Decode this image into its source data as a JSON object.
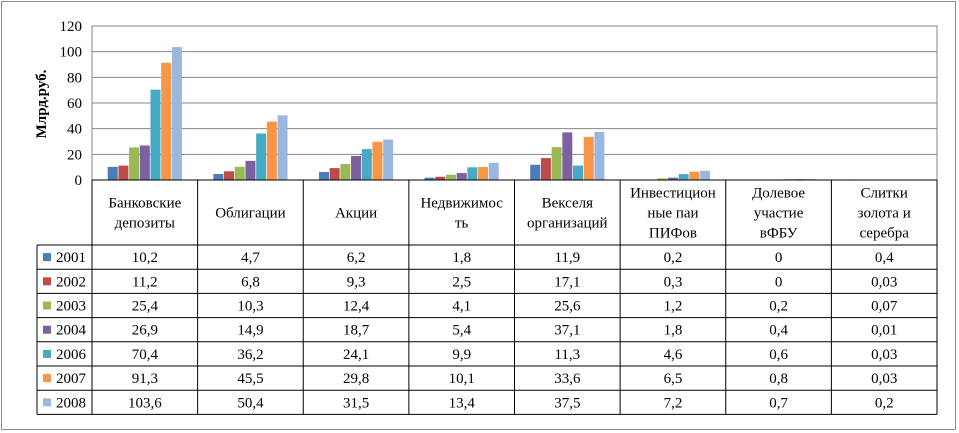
{
  "chart_data": {
    "type": "bar",
    "ylabel": "Млрд.руб.",
    "ylim": [
      0,
      120
    ],
    "yticks": [
      0,
      20,
      40,
      60,
      80,
      100,
      120
    ],
    "grid": true,
    "categories": [
      [
        "Банковские",
        "депозиты"
      ],
      [
        "Облигации"
      ],
      [
        "Акции"
      ],
      [
        "Недвижимос",
        "ть"
      ],
      [
        "Векселя",
        "организаций"
      ],
      [
        "Инвестицион",
        "ные паи",
        "ПИФов"
      ],
      [
        "Долевое",
        "участие",
        "вФБУ"
      ],
      [
        "Слитки",
        "золота и",
        "серебра"
      ]
    ],
    "series": [
      {
        "name": "2001",
        "color": "#4a7ebb",
        "values": [
          10.2,
          4.7,
          6.2,
          1.8,
          11.9,
          0.2,
          0,
          0.4
        ],
        "labels": [
          "10,2",
          "4,7",
          "6,2",
          "1,8",
          "11,9",
          "0,2",
          "0",
          "0,4"
        ]
      },
      {
        "name": "2002",
        "color": "#be4b48",
        "values": [
          11.2,
          6.8,
          9.3,
          2.5,
          17.1,
          0.3,
          0,
          0.03
        ],
        "labels": [
          "11,2",
          "6,8",
          "9,3",
          "2,5",
          "17,1",
          "0,3",
          "0",
          "0,03"
        ]
      },
      {
        "name": "2003",
        "color": "#98b954",
        "values": [
          25.4,
          10.3,
          12.4,
          4.1,
          25.6,
          1.2,
          0.2,
          0.07
        ],
        "labels": [
          "25,4",
          "10,3",
          "12,4",
          "4,1",
          "25,6",
          "1,2",
          "0,2",
          "0,07"
        ]
      },
      {
        "name": "2004",
        "color": "#7d60a0",
        "values": [
          26.9,
          14.9,
          18.7,
          5.4,
          37.1,
          1.8,
          0.4,
          0.01
        ],
        "labels": [
          "26,9",
          "14,9",
          "18,7",
          "5,4",
          "37,1",
          "1,8",
          "0,4",
          "0,01"
        ]
      },
      {
        "name": "2006",
        "color": "#46aac5",
        "values": [
          70.4,
          36.2,
          24.1,
          9.9,
          11.3,
          4.6,
          0.6,
          0.03
        ],
        "labels": [
          "70,4",
          "36,2",
          "24,1",
          "9,9",
          "11,3",
          "4,6",
          "0,6",
          "0,03"
        ]
      },
      {
        "name": "2007",
        "color": "#f79646",
        "values": [
          91.3,
          45.5,
          29.8,
          10.1,
          33.6,
          6.5,
          0.8,
          0.03
        ],
        "labels": [
          "91,3",
          "45,5",
          "29,8",
          "10,1",
          "33,6",
          "6,5",
          "0,8",
          "0,03"
        ]
      },
      {
        "name": "2008",
        "color": "#9bb7e0",
        "values": [
          103.6,
          50.4,
          31.5,
          13.4,
          37.5,
          7.2,
          0.7,
          0.2
        ],
        "labels": [
          "103,6",
          "50,4",
          "31,5",
          "13,4",
          "37,5",
          "7,2",
          "0,7",
          "0,2"
        ]
      }
    ]
  }
}
